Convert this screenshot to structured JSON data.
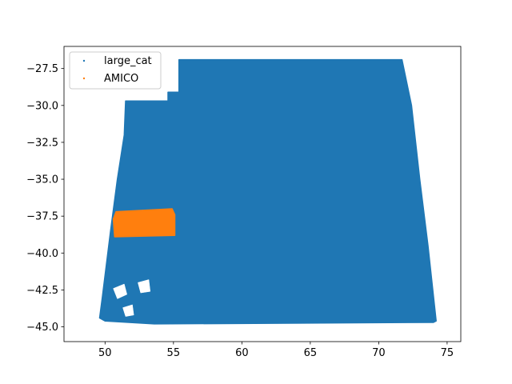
{
  "chart_data": {
    "type": "scatter",
    "title": "",
    "xlabel": "",
    "ylabel": "",
    "xlim": [
      47.0,
      76.0
    ],
    "ylim": [
      -46.0,
      -26.0
    ],
    "x_ticks": [
      50,
      55,
      60,
      65,
      70,
      75
    ],
    "x_tick_labels": [
      "50",
      "55",
      "60",
      "65",
      "70",
      "75"
    ],
    "y_ticks": [
      -27.5,
      -30.0,
      -32.5,
      -35.0,
      -37.5,
      -40.0,
      -42.5,
      -45.0
    ],
    "y_tick_labels": [
      "−27.5",
      "−30.0",
      "−32.5",
      "−35.0",
      "−37.5",
      "−40.0",
      "−42.5",
      "−45.0"
    ],
    "grid": false,
    "legend_position": "upper left",
    "series": [
      {
        "name": "large_cat",
        "color": "#1f77b4",
        "marker": "small point",
        "footprint": [
          [
            55.4,
            -26.9
          ],
          [
            71.7,
            -26.9
          ],
          [
            72.4,
            -30.0
          ],
          [
            73.0,
            -35.0
          ],
          [
            73.6,
            -39.5
          ],
          [
            74.2,
            -44.6
          ],
          [
            74.0,
            -44.7
          ],
          [
            53.6,
            -44.8
          ],
          [
            50.0,
            -44.6
          ],
          [
            49.6,
            -44.4
          ],
          [
            49.8,
            -43.0
          ],
          [
            50.4,
            -38.5
          ],
          [
            50.9,
            -35.0
          ],
          [
            51.4,
            -32.0
          ],
          [
            51.5,
            -29.7
          ],
          [
            54.6,
            -29.7
          ],
          [
            54.6,
            -29.1
          ],
          [
            55.4,
            -29.1
          ],
          [
            55.4,
            -27.7
          ]
        ],
        "gaps": [
          [
            [
              50.6,
              -42.4
            ],
            [
              51.4,
              -42.1
            ],
            [
              51.6,
              -42.8
            ],
            [
              50.9,
              -43.1
            ]
          ],
          [
            [
              52.4,
              -42.0
            ],
            [
              53.2,
              -41.8
            ],
            [
              53.3,
              -42.6
            ],
            [
              52.6,
              -42.7
            ]
          ],
          [
            [
              51.3,
              -43.7
            ],
            [
              52.0,
              -43.5
            ],
            [
              52.1,
              -44.2
            ],
            [
              51.5,
              -44.3
            ]
          ]
        ]
      },
      {
        "name": "AMICO",
        "color": "#ff7f0e",
        "marker": "small point",
        "footprint": [
          [
            50.8,
            -37.2
          ],
          [
            54.9,
            -37.0
          ],
          [
            55.1,
            -37.4
          ],
          [
            55.1,
            -38.8
          ],
          [
            50.7,
            -38.9
          ],
          [
            50.6,
            -37.7
          ]
        ],
        "gaps": []
      }
    ]
  }
}
